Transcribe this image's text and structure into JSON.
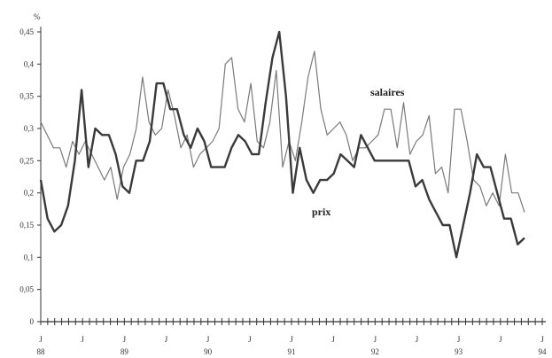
{
  "chart_data": {
    "type": "line",
    "title": "",
    "ylabel": "%",
    "ylim": [
      0,
      0.45
    ],
    "y_ticks": [
      "0",
      "0,05",
      "0,1",
      "0,15",
      "0,2",
      "0,25",
      "0,3",
      "0,35",
      "0,4",
      "0,45"
    ],
    "x_ticks": [
      {
        "month": "J",
        "year": "88"
      },
      {
        "month": "J",
        "year": ""
      },
      {
        "month": "J",
        "year": "89"
      },
      {
        "month": "J",
        "year": ""
      },
      {
        "month": "J",
        "year": "90"
      },
      {
        "month": "J",
        "year": ""
      },
      {
        "month": "J",
        "year": "91"
      },
      {
        "month": "J",
        "year": ""
      },
      {
        "month": "J",
        "year": "92"
      },
      {
        "month": "J",
        "year": ""
      },
      {
        "month": "J",
        "year": "93"
      },
      {
        "month": "J",
        "year": ""
      },
      {
        "month": "J",
        "year": "94"
      }
    ],
    "grid": false,
    "series": [
      {
        "name": "salaires",
        "color": "#7a7a7a",
        "values": [
          0.31,
          0.29,
          0.27,
          0.27,
          0.24,
          0.28,
          0.26,
          0.28,
          0.26,
          0.24,
          0.22,
          0.24,
          0.19,
          0.24,
          0.26,
          0.3,
          0.38,
          0.31,
          0.29,
          0.3,
          0.36,
          0.32,
          0.27,
          0.29,
          0.24,
          0.26,
          0.27,
          0.28,
          0.3,
          0.4,
          0.41,
          0.33,
          0.31,
          0.37,
          0.28,
          0.27,
          0.31,
          0.39,
          0.24,
          0.28,
          0.25,
          0.31,
          0.38,
          0.42,
          0.33,
          0.29,
          0.3,
          0.31,
          0.29,
          0.25,
          0.27,
          0.27,
          0.28,
          0.29,
          0.33,
          0.33,
          0.27,
          0.34,
          0.26,
          0.28,
          0.29,
          0.32,
          0.23,
          0.24,
          0.2,
          0.33,
          0.33,
          0.28,
          0.22,
          0.21,
          0.18,
          0.2,
          0.18,
          0.26,
          0.2,
          0.2,
          0.17
        ]
      },
      {
        "name": "prix",
        "color": "#3a3a3a",
        "values": [
          0.22,
          0.16,
          0.14,
          0.15,
          0.18,
          0.25,
          0.36,
          0.24,
          0.3,
          0.29,
          0.29,
          0.26,
          0.21,
          0.2,
          0.25,
          0.25,
          0.28,
          0.37,
          0.37,
          0.33,
          0.33,
          0.29,
          0.27,
          0.3,
          0.28,
          0.24,
          0.24,
          0.24,
          0.27,
          0.29,
          0.28,
          0.26,
          0.26,
          0.34,
          0.41,
          0.45,
          0.35,
          0.2,
          0.27,
          0.22,
          0.2,
          0.22,
          0.22,
          0.23,
          0.26,
          0.25,
          0.24,
          0.29,
          0.27,
          0.25,
          0.25,
          0.25,
          0.25,
          0.25,
          0.25,
          0.21,
          0.22,
          0.19,
          0.17,
          0.15,
          0.15,
          0.1,
          0.15,
          0.2,
          0.26,
          0.24,
          0.24,
          0.2,
          0.16,
          0.16,
          0.12,
          0.13
        ]
      }
    ],
    "annotations": [
      {
        "text": "salaires",
        "series": "salaires"
      },
      {
        "text": "prix",
        "series": "prix"
      }
    ]
  }
}
